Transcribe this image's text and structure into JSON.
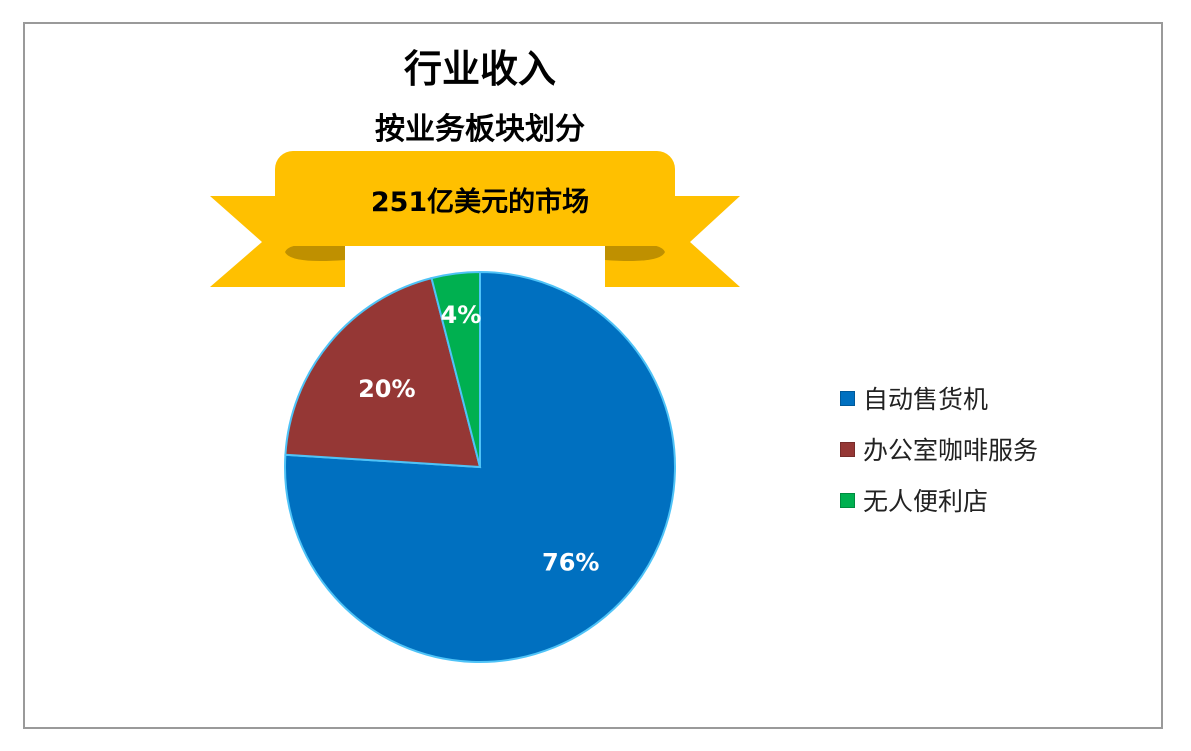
{
  "chart_data": {
    "type": "pie",
    "title": "行业收入",
    "subtitle": "按业务板块划分",
    "banner": "251亿美元的市场",
    "categories": [
      "自动售货机",
      "办公室咖啡服务",
      "无人便利店"
    ],
    "values": [
      76,
      20,
      4
    ],
    "data_labels": [
      "76%",
      "20%",
      "4%"
    ],
    "colors": [
      "#0070C0",
      "#953735",
      "#00B050"
    ],
    "legend_position": "right"
  }
}
